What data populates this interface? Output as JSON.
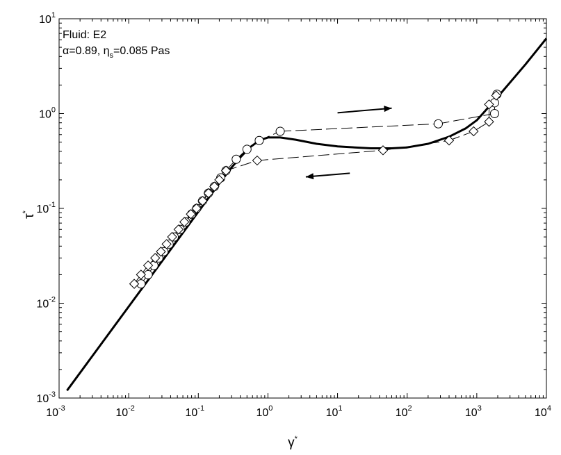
{
  "chart_data": {
    "type": "scatter",
    "title": "",
    "x_scale": "log",
    "y_scale": "log",
    "xlim": [
      0.001,
      10000
    ],
    "ylim": [
      0.001,
      10
    ],
    "xlabel": {
      "base": "γ",
      "sup": "*"
    },
    "ylabel": {
      "base": "τ",
      "sup": "*"
    },
    "grid": false,
    "legend": "none",
    "x_ticks": [
      {
        "value": 0.001,
        "base": "10",
        "exp": "-3"
      },
      {
        "value": 0.01,
        "base": "10",
        "exp": "-2"
      },
      {
        "value": 0.1,
        "base": "10",
        "exp": "-1"
      },
      {
        "value": 1,
        "base": "10",
        "exp": "0"
      },
      {
        "value": 10,
        "base": "10",
        "exp": "1"
      },
      {
        "value": 100,
        "base": "10",
        "exp": "2"
      },
      {
        "value": 1000,
        "base": "10",
        "exp": "3"
      },
      {
        "value": 10000,
        "base": "10",
        "exp": "4"
      }
    ],
    "y_ticks": [
      {
        "value": 0.001,
        "base": "10",
        "exp": "-3"
      },
      {
        "value": 0.01,
        "base": "10",
        "exp": "-2"
      },
      {
        "value": 0.1,
        "base": "10",
        "exp": "-1"
      },
      {
        "value": 1,
        "base": "10",
        "exp": "0"
      },
      {
        "value": 10,
        "base": "10",
        "exp": "1"
      }
    ],
    "annotations": {
      "fluid": "Fluid: E2",
      "alpha": "α=0.89, η",
      "eta_sub": "s",
      "eta_val": "=0.085 Pas"
    },
    "arrows": [
      {
        "direction": "right",
        "from": [
          10,
          1.02
        ],
        "to": [
          60,
          1.14
        ]
      },
      {
        "direction": "left",
        "from": [
          15,
          0.235
        ],
        "to": [
          3.5,
          0.215
        ]
      }
    ],
    "series": [
      {
        "marker": "circle",
        "x": [
          0.015,
          0.019,
          0.023,
          0.027,
          0.032,
          0.038,
          0.045,
          0.055,
          0.066,
          0.08,
          0.095,
          0.115,
          0.14,
          0.17,
          0.21,
          0.25,
          0.35,
          0.5,
          0.75,
          1.5,
          280,
          1800,
          1800,
          1950
        ],
        "y": [
          0.016,
          0.02,
          0.025,
          0.03,
          0.035,
          0.042,
          0.05,
          0.06,
          0.072,
          0.087,
          0.1,
          0.12,
          0.145,
          0.17,
          0.21,
          0.25,
          0.33,
          0.42,
          0.52,
          0.65,
          0.78,
          1.0,
          1.3,
          1.6
        ]
      },
      {
        "marker": "diamond",
        "x": [
          0.012,
          0.015,
          0.019,
          0.024,
          0.029,
          0.035,
          0.042,
          0.052,
          0.063,
          0.078,
          0.094,
          0.115,
          0.14,
          0.17,
          0.2,
          0.25,
          0.7,
          45,
          400,
          900,
          1500,
          1500,
          1900
        ],
        "y": [
          0.016,
          0.02,
          0.025,
          0.03,
          0.035,
          0.042,
          0.05,
          0.06,
          0.072,
          0.087,
          0.1,
          0.12,
          0.145,
          0.17,
          0.2,
          0.25,
          0.32,
          0.41,
          0.52,
          0.65,
          0.82,
          1.25,
          1.55
        ]
      },
      {
        "name": "",
        "style": "solid-thick",
        "x": [
          0.0013,
          0.01,
          0.1,
          0.2,
          0.3,
          0.4,
          0.55,
          0.75,
          1.0,
          1.5,
          2.5,
          5,
          10,
          30,
          60,
          100,
          200,
          400,
          700,
          1000,
          2000,
          5000,
          10000
        ],
        "y": [
          0.0012,
          0.0092,
          0.092,
          0.183,
          0.27,
          0.345,
          0.44,
          0.52,
          0.56,
          0.56,
          0.53,
          0.48,
          0.45,
          0.43,
          0.43,
          0.44,
          0.48,
          0.57,
          0.7,
          0.85,
          1.5,
          3.3,
          6.2
        ]
      }
    ]
  }
}
